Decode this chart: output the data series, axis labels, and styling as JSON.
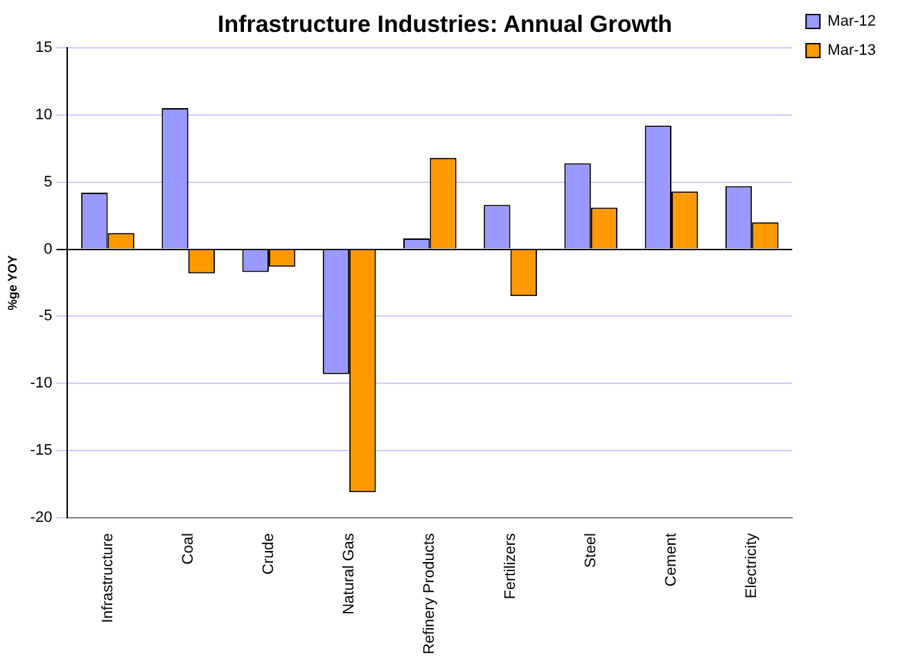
{
  "chart_data": {
    "type": "bar",
    "title": "Infrastructure Industries: Annual Growth",
    "ylabel": "%ge YOY",
    "categories": [
      "Infrastructure",
      "Coal",
      "Crude",
      "Natural Gas",
      "Refinery Products",
      "Fertilizers",
      "Steel",
      "Cement",
      "Electricity"
    ],
    "series": [
      {
        "name": "Mar-12",
        "color": "#9999ff",
        "values": [
          4.2,
          10.5,
          -1.7,
          -9.3,
          0.8,
          3.3,
          6.4,
          9.2,
          4.7
        ]
      },
      {
        "name": "Mar-13",
        "color": "#ff9900",
        "values": [
          1.2,
          -1.8,
          -1.3,
          -18.1,
          6.8,
          -3.5,
          3.1,
          4.3,
          2.0
        ]
      }
    ],
    "ylim": [
      -20,
      15
    ],
    "yticks": [
      -20,
      -15,
      -10,
      -5,
      0,
      5,
      10,
      15
    ],
    "grid": "y",
    "legend": "top right"
  }
}
